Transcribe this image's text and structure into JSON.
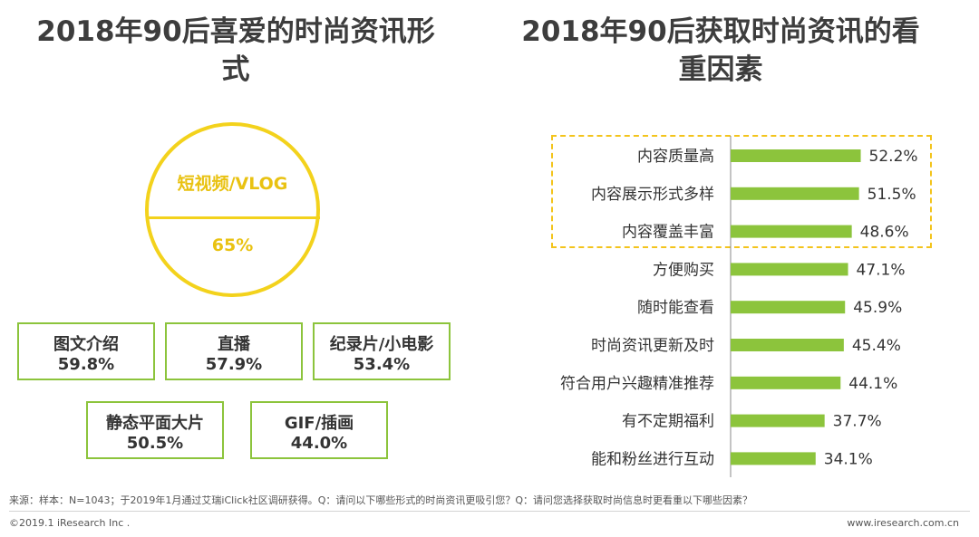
{
  "left_title": "2018年90后喜爱的时尚资讯形式",
  "right_title": "2018年90后获取时尚资讯的看重因素",
  "hero": {
    "label": "短视频/VLOG",
    "value": "65%"
  },
  "formats": [
    {
      "name": "图文介绍",
      "value": "59.8%"
    },
    {
      "name": "直播",
      "value": "57.9%"
    },
    {
      "name": "纪录片/小电影",
      "value": "53.4%"
    },
    {
      "name": "静态平面大片",
      "value": "50.5%"
    },
    {
      "name": "GIF/插画",
      "value": "44.0%"
    }
  ],
  "chart_data": {
    "type": "bar",
    "orientation": "horizontal",
    "categories": [
      "内容质量高",
      "内容展示形式多样",
      "内容覆盖丰富",
      "方便购买",
      "随时能查看",
      "时尚资讯更新及时",
      "符合用户兴趣精准推荐",
      "有不定期福利",
      "能和粉丝进行互动"
    ],
    "values": [
      52.2,
      51.5,
      48.6,
      47.1,
      45.9,
      45.4,
      44.1,
      37.7,
      34.1
    ],
    "value_labels": [
      "52.2%",
      "51.5%",
      "48.6%",
      "47.1%",
      "45.9%",
      "45.4%",
      "44.1%",
      "37.7%",
      "34.1%"
    ],
    "highlighted": [
      "内容质量高",
      "内容展示形式多样",
      "内容覆盖丰富"
    ],
    "bar_color": "#8cc43c",
    "highlight_color": "#f3c41c",
    "grid": false,
    "title": "",
    "xlabel": "",
    "ylabel": ""
  },
  "footer": {
    "source": "来源：样本：N=1043；于2019年1月通过艾瑞iClick社区调研获得。Q：请问以下哪些形式的时尚资讯更吸引您？Q：请问您选择获取时尚信息时更看重以下哪些因素？",
    "copyright": "©2019.1 iResearch Inc .",
    "website": "www.iresearch.com.cn"
  },
  "colors": {
    "accent_yellow": "#f3d21c",
    "accent_green": "#8cc43c"
  }
}
